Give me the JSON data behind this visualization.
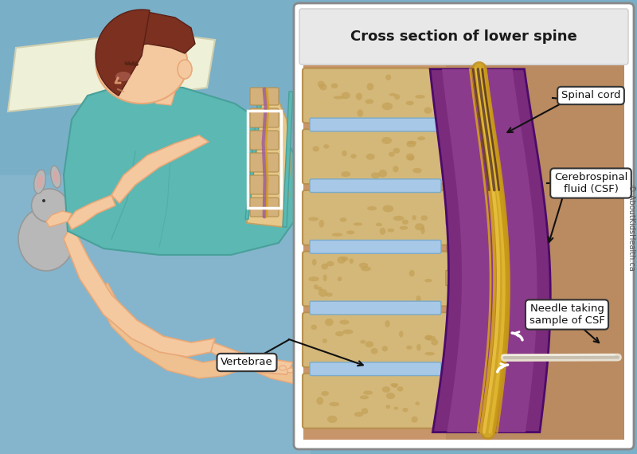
{
  "bg_color": "#7AAFC8",
  "pillow_color": "#EFF0D8",
  "skin_color": "#F5C9A0",
  "skin_dark": "#E8A878",
  "hair_color": "#7B3020",
  "gown_color": "#5CB8B2",
  "gown_dark": "#48A09A",
  "bed_color": "#7AAFC8",
  "panel_bg": "#C8956A",
  "panel_bg2": "#D4A878",
  "vertebra_color": "#D4B87A",
  "vertebra_light": "#E0CB95",
  "vertebra_dark": "#B89050",
  "disc_color": "#A8C8E8",
  "disc_dark": "#7AAAC8",
  "dura_outer": "#7B2B7B",
  "dura_mid": "#9B4B9B",
  "nerve_gold": "#D4A020",
  "nerve_dark": "#C08010",
  "needle_color": "#E8E0D0",
  "needle_shadow": "#C8C0B0",
  "white": "#FFFFFF",
  "label_bg": "#FFFFFF",
  "label_border": "#333333",
  "arrow_color": "#111111",
  "title": "Cross section of lower spine",
  "label_spinal_cord": "Spinal cord",
  "label_csf": "Cerebrospinal\nfluid (CSF)",
  "label_vertebrae": "Vertebrae",
  "label_needle": "Needle taking\nsample of CSF",
  "copyright": "© AboutKidsHealth.ca",
  "toy_color": "#B8B8B8",
  "toy_dark": "#989898"
}
